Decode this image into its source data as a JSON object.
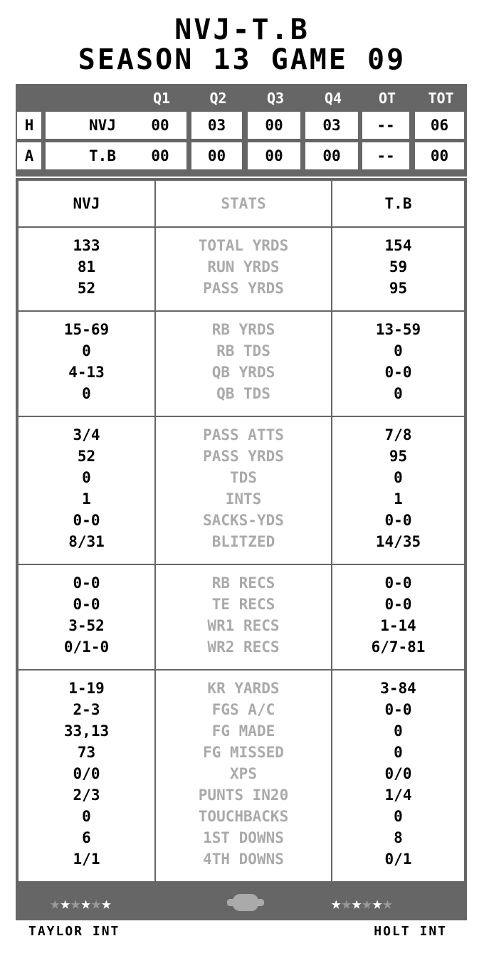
{
  "title": {
    "line1": "NVJ-T.B",
    "line2": "SEASON 13 GAME 09"
  },
  "scoreboard": {
    "headers": [
      "Q1",
      "Q2",
      "Q3",
      "Q4",
      "OT",
      "TOT"
    ],
    "rows": [
      {
        "side": "H",
        "team": "NVJ",
        "scores": [
          "00",
          "03",
          "00",
          "03",
          "--",
          "06"
        ]
      },
      {
        "side": "A",
        "team": "T.B",
        "scores": [
          "00",
          "00",
          "00",
          "00",
          "--",
          "00"
        ]
      }
    ]
  },
  "stats": {
    "home_team": "NVJ",
    "header": "STATS",
    "away_team": "T.B",
    "sections": [
      {
        "labels": [
          "TOTAL YRDS",
          "RUN YRDS",
          "PASS YRDS"
        ],
        "home": [
          "133",
          "81",
          "52"
        ],
        "away": [
          "154",
          "59",
          "95"
        ]
      },
      {
        "labels": [
          "RB YRDS",
          "RB TDS",
          "QB YRDS",
          "QB TDS"
        ],
        "home": [
          "15-69",
          "0",
          "4-13",
          "0"
        ],
        "away": [
          "13-59",
          "0",
          "0-0",
          "0"
        ]
      },
      {
        "labels": [
          "PASS ATTS",
          "PASS YRDS",
          "TDS",
          "INTS",
          "SACKS-YDS",
          "BLITZED"
        ],
        "home": [
          "3/4",
          "52",
          "0",
          "1",
          "0-0",
          "8/31"
        ],
        "away": [
          "7/8",
          "95",
          "0",
          "1",
          "0-0",
          "14/35"
        ]
      },
      {
        "labels": [
          "RB RECS",
          "TE RECS",
          "WR1 RECS",
          "WR2 RECS"
        ],
        "home": [
          "0-0",
          "0-0",
          "3-52",
          "0/1-0"
        ],
        "away": [
          "0-0",
          "0-0",
          "1-14",
          "6/7-81"
        ]
      },
      {
        "labels": [
          "KR YARDS",
          "FGS A/C",
          "FG MADE",
          "FG MISSED",
          "XPS",
          "PUNTS IN20",
          "TOUCHBACKS",
          "1ST DOWNS",
          "4TH DOWNS"
        ],
        "home": [
          "1-19",
          "2-3",
          "33,13",
          "73",
          "0/0",
          "2/3",
          "0",
          "6",
          "1/1"
        ],
        "away": [
          "3-84",
          "0-0",
          "0",
          "0",
          "0/0",
          "1/4",
          "0",
          "8",
          "0/1"
        ]
      }
    ]
  },
  "footer": {
    "home_stars": [
      "gray",
      "white",
      "gray",
      "white",
      "gray",
      "white"
    ],
    "away_stars": [
      "white",
      "gray",
      "white",
      "gray",
      "white",
      "gray"
    ],
    "icon": "football-icon",
    "home_player": "TAYLOR INT",
    "away_player": "HOLT INT"
  },
  "colors": {
    "frame": "#666666",
    "label": "#aaaaaa",
    "star_gray": "#999999",
    "star_white": "#ffffff"
  }
}
